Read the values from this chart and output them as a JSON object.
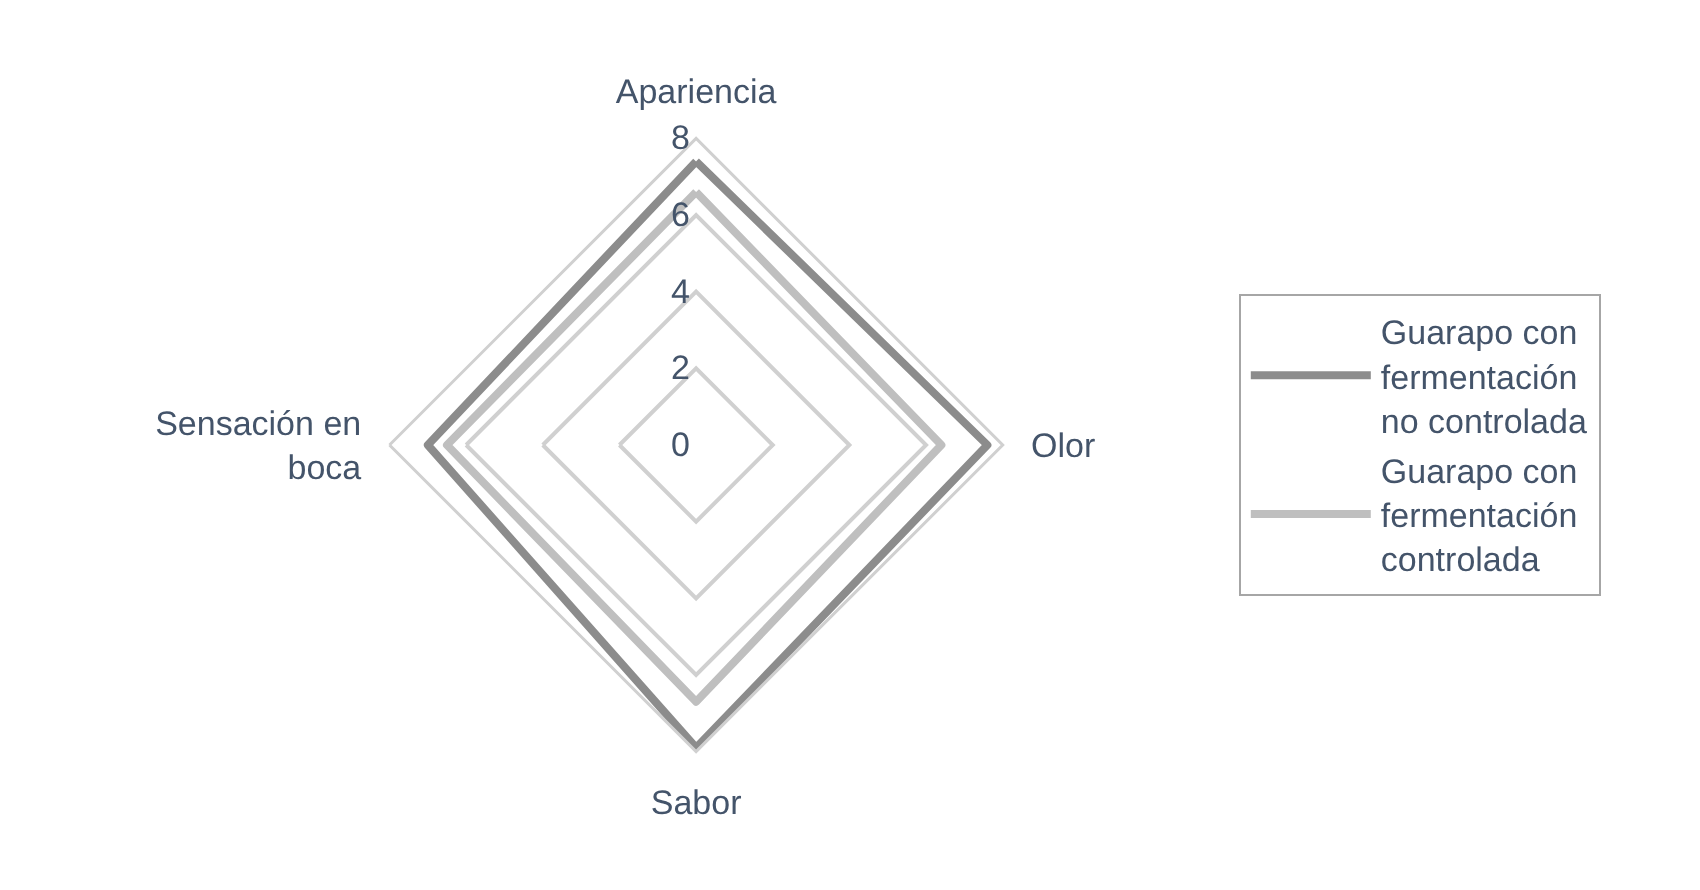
{
  "chart_data": {
    "type": "radar",
    "categories": [
      "Apariencia",
      "Olor",
      "Sabor",
      "Sensación en boca"
    ],
    "series": [
      {
        "name": "Guarapo con fermentación no controlada",
        "color": "#8c8c8c",
        "values": [
          7.4,
          7.6,
          7.9,
          7.0
        ]
      },
      {
        "name": "Guarapo con fermentación controlada",
        "color": "#bfbfbf",
        "values": [
          6.6,
          6.4,
          6.7,
          6.5
        ]
      }
    ],
    "ylim": [
      0,
      8
    ],
    "yticks": [
      0,
      2,
      4,
      6,
      8
    ],
    "grid": true,
    "legend": "right",
    "marker": "none",
    "line_style": "solid"
  }
}
